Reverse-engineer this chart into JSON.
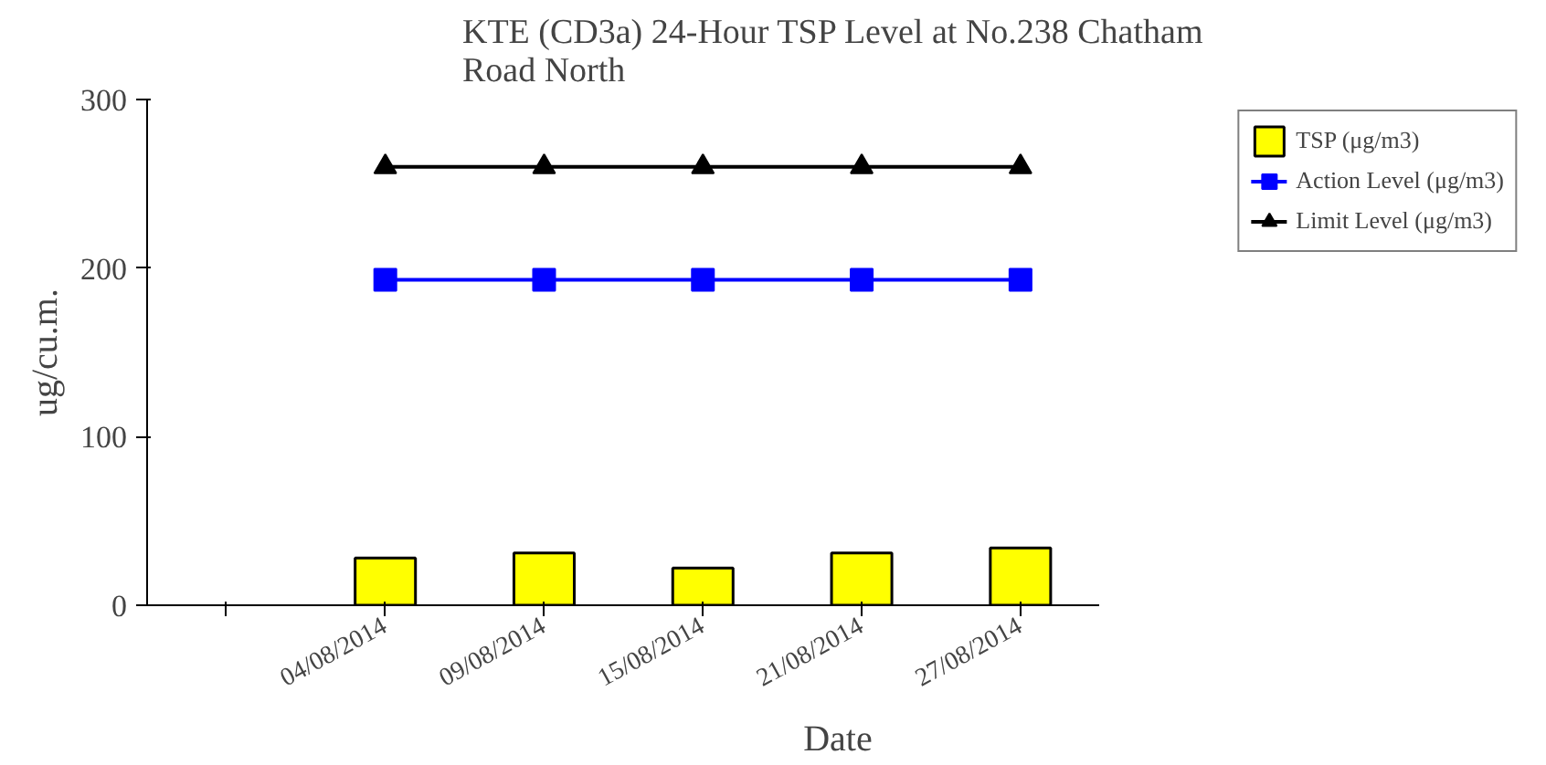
{
  "chart_data": {
    "type": "bar",
    "title": "KTE  (CD3a) 24-Hour TSP Level at No.238 Chatham Road North",
    "xlabel": "Date",
    "ylabel": "ug/cu.m.",
    "categories": [
      null,
      "04/08/2014",
      "09/08/2014",
      "15/08/2014",
      "21/08/2014",
      "27/08/2014"
    ],
    "series": [
      {
        "name": "TSP (μg/m3)",
        "color": "#ffff00",
        "values": [
          null,
          28,
          31,
          22,
          31,
          34
        ]
      },
      {
        "name": "Action Level (μg/m3)",
        "type": "line",
        "marker": "square",
        "color": "#0000ff",
        "values": [
          null,
          193,
          193,
          193,
          193,
          193
        ]
      },
      {
        "name": "Limit Level (μg/m3)",
        "type": "line",
        "marker": "triangle",
        "color": "#000000",
        "values": [
          null,
          260,
          260,
          260,
          260,
          260
        ]
      }
    ],
    "ylim": [
      0,
      300
    ],
    "yticks": [
      0,
      100,
      200,
      300
    ],
    "grid": false,
    "legend": "right"
  }
}
